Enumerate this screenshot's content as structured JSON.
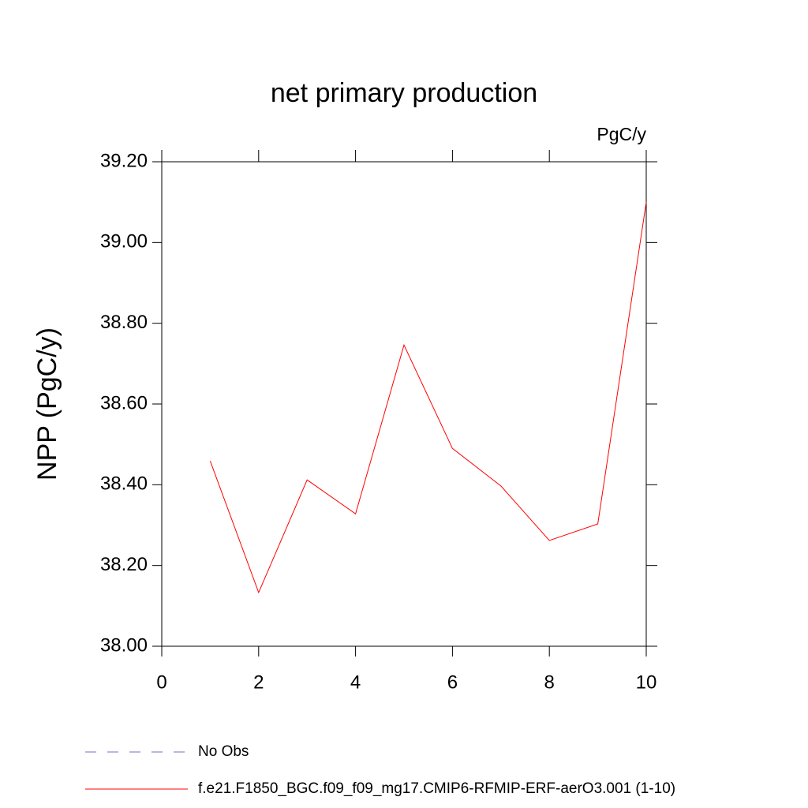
{
  "chart_data": {
    "type": "line",
    "title": "net primary production",
    "units": "PgC/y",
    "y_label": "NPP  (PgC/y)",
    "x": [
      1,
      2,
      3,
      4,
      5,
      6,
      7,
      8,
      9,
      10
    ],
    "series": [
      {
        "name": "No Obs",
        "color": "#7070c0",
        "dashed": true,
        "values": [
          null,
          null,
          null,
          null,
          null,
          null,
          null,
          null,
          null,
          null
        ]
      },
      {
        "name": "f.e21.F1850_BGC.f09_f09_mg17.CMIP6-RFMIP-ERF-aerO3.001 (1-10)",
        "color": "#ff0000",
        "dashed": false,
        "values": [
          38.459,
          38.133,
          38.412,
          38.328,
          38.746,
          38.49,
          38.397,
          38.262,
          38.303,
          39.1
        ]
      }
    ],
    "xlim": [
      0,
      10
    ],
    "xticks": [
      0,
      2,
      4,
      6,
      8,
      10
    ],
    "ylim": [
      38.0,
      39.2
    ],
    "yticks": [
      {
        "value": 38.0,
        "label": "38.00"
      },
      {
        "value": 38.2,
        "label": "38.20"
      },
      {
        "value": 38.4,
        "label": "38.40"
      },
      {
        "value": 38.6,
        "label": "38.60"
      },
      {
        "value": 38.8,
        "label": "38.80"
      },
      {
        "value": 39.0,
        "label": "39.00"
      },
      {
        "value": 39.2,
        "label": "39.20"
      }
    ],
    "grid": false
  }
}
